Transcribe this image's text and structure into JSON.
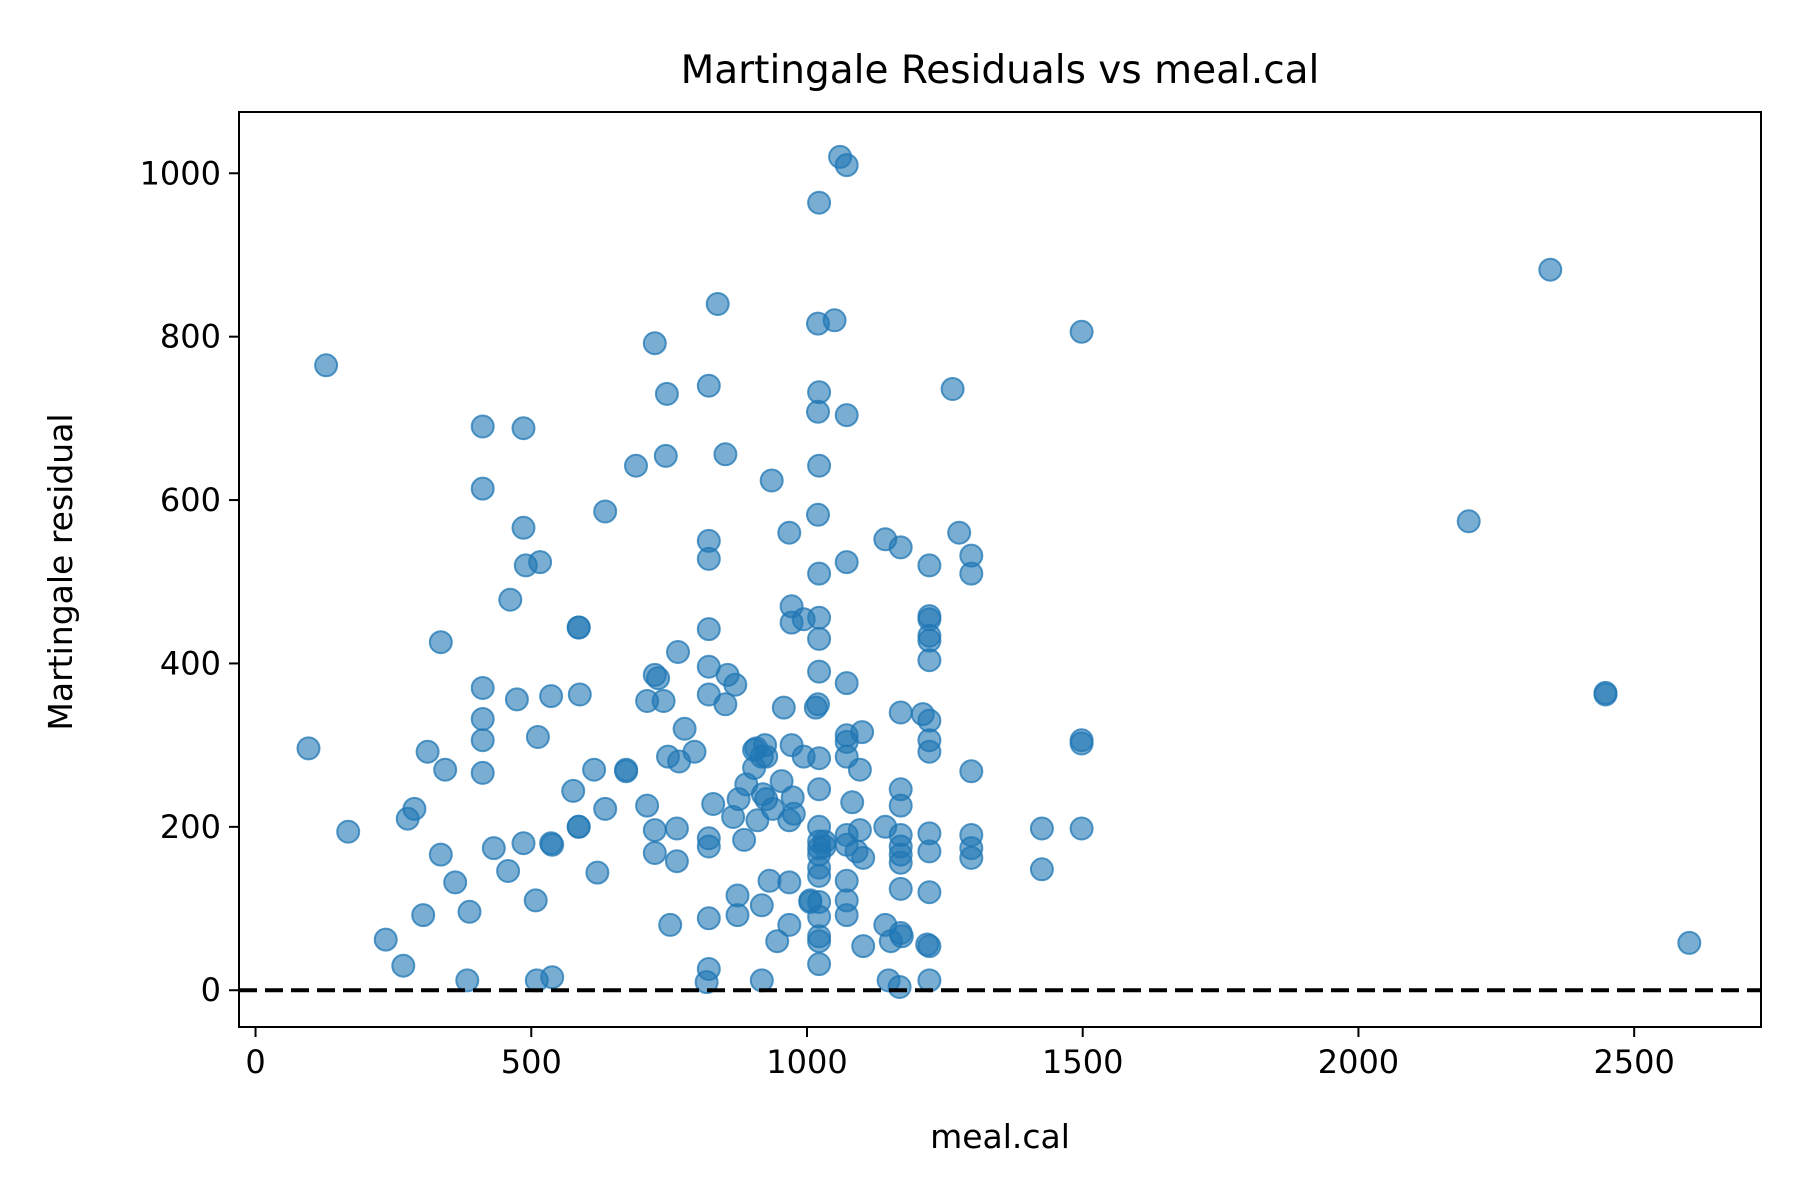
{
  "chart_data": {
    "type": "scatter",
    "title": "Martingale Residuals vs meal.cal",
    "xlabel": "meal.cal",
    "ylabel": "Martingale residual",
    "xlim": [
      -30,
      2730
    ],
    "ylim": [
      -45,
      1075
    ],
    "xticks": [
      0,
      500,
      1000,
      1500,
      2000,
      2500
    ],
    "yticks": [
      0,
      200,
      400,
      600,
      800,
      1000
    ],
    "grid": false,
    "reference_line": {
      "y": 0,
      "style": "dashed",
      "color": "#000000"
    },
    "marker_color": "#1f77b4",
    "marker_alpha": 0.6,
    "points": [
      [
        96,
        296
      ],
      [
        128,
        765
      ],
      [
        168,
        194
      ],
      [
        236,
        62
      ],
      [
        268,
        30
      ],
      [
        276,
        210
      ],
      [
        288,
        222
      ],
      [
        304,
        92
      ],
      [
        312,
        292
      ],
      [
        336,
        166
      ],
      [
        336,
        426
      ],
      [
        344,
        270
      ],
      [
        362,
        132
      ],
      [
        384,
        12
      ],
      [
        388,
        96
      ],
      [
        412,
        690
      ],
      [
        412,
        614
      ],
      [
        412,
        370
      ],
      [
        412,
        332
      ],
      [
        412,
        306
      ],
      [
        412,
        266
      ],
      [
        432,
        174
      ],
      [
        458,
        146
      ],
      [
        462,
        478
      ],
      [
        474,
        356
      ],
      [
        486,
        180
      ],
      [
        486,
        566
      ],
      [
        486,
        688
      ],
      [
        490,
        520
      ],
      [
        508,
        110
      ],
      [
        510,
        12
      ],
      [
        512,
        310
      ],
      [
        516,
        524
      ],
      [
        536,
        180
      ],
      [
        536,
        360
      ],
      [
        538,
        178
      ],
      [
        538,
        16
      ],
      [
        576,
        244
      ],
      [
        586,
        200
      ],
      [
        586,
        200
      ],
      [
        586,
        444
      ],
      [
        586,
        444
      ],
      [
        588,
        362
      ],
      [
        614,
        270
      ],
      [
        620,
        144
      ],
      [
        634,
        222
      ],
      [
        634,
        586
      ],
      [
        672,
        270
      ],
      [
        672,
        268
      ],
      [
        690,
        642
      ],
      [
        710,
        226
      ],
      [
        710,
        354
      ],
      [
        724,
        168
      ],
      [
        724,
        196
      ],
      [
        724,
        386
      ],
      [
        724,
        792
      ],
      [
        730,
        382
      ],
      [
        740,
        354
      ],
      [
        744,
        654
      ],
      [
        746,
        730
      ],
      [
        748,
        286
      ],
      [
        752,
        80
      ],
      [
        764,
        198
      ],
      [
        764,
        158
      ],
      [
        766,
        414
      ],
      [
        768,
        280
      ],
      [
        778,
        320
      ],
      [
        796,
        292
      ],
      [
        818,
        10
      ],
      [
        822,
        26
      ],
      [
        822,
        740
      ],
      [
        822,
        550
      ],
      [
        822,
        528
      ],
      [
        822,
        442
      ],
      [
        822,
        396
      ],
      [
        822,
        362
      ],
      [
        822,
        186
      ],
      [
        822,
        176
      ],
      [
        822,
        88
      ],
      [
        830,
        228
      ],
      [
        838,
        840
      ],
      [
        852,
        656
      ],
      [
        852,
        350
      ],
      [
        856,
        386
      ],
      [
        866,
        212
      ],
      [
        870,
        374
      ],
      [
        874,
        116
      ],
      [
        874,
        92
      ],
      [
        876,
        234
      ],
      [
        886,
        184
      ],
      [
        890,
        252
      ],
      [
        904,
        272
      ],
      [
        904,
        294
      ],
      [
        908,
        296
      ],
      [
        910,
        208
      ],
      [
        918,
        286
      ],
      [
        918,
        12
      ],
      [
        918,
        104
      ],
      [
        920,
        240
      ],
      [
        924,
        300
      ],
      [
        926,
        234
      ],
      [
        926,
        286
      ],
      [
        932,
        134
      ],
      [
        936,
        624
      ],
      [
        938,
        222
      ],
      [
        946,
        60
      ],
      [
        954,
        256
      ],
      [
        958,
        346
      ],
      [
        968,
        208
      ],
      [
        968,
        132
      ],
      [
        968,
        80
      ],
      [
        968,
        560
      ],
      [
        972,
        470
      ],
      [
        972,
        450
      ],
      [
        972,
        300
      ],
      [
        974,
        236
      ],
      [
        976,
        216
      ],
      [
        994,
        286
      ],
      [
        994,
        454
      ],
      [
        1006,
        108
      ],
      [
        1006,
        110
      ],
      [
        1016,
        346
      ],
      [
        1020,
        816
      ],
      [
        1020,
        708
      ],
      [
        1020,
        582
      ],
      [
        1020,
        350
      ],
      [
        1022,
        284
      ],
      [
        1022,
        964
      ],
      [
        1022,
        732
      ],
      [
        1022,
        642
      ],
      [
        1022,
        510
      ],
      [
        1022,
        456
      ],
      [
        1022,
        430
      ],
      [
        1022,
        390
      ],
      [
        1022,
        246
      ],
      [
        1022,
        200
      ],
      [
        1022,
        182
      ],
      [
        1022,
        174
      ],
      [
        1022,
        166
      ],
      [
        1022,
        150
      ],
      [
        1022,
        140
      ],
      [
        1022,
        108
      ],
      [
        1022,
        90
      ],
      [
        1022,
        66
      ],
      [
        1022,
        60
      ],
      [
        1022,
        32
      ],
      [
        1032,
        182
      ],
      [
        1032,
        176
      ],
      [
        1050,
        820
      ],
      [
        1060,
        1020
      ],
      [
        1072,
        1010
      ],
      [
        1072,
        704
      ],
      [
        1072,
        524
      ],
      [
        1072,
        376
      ],
      [
        1072,
        312
      ],
      [
        1072,
        304
      ],
      [
        1072,
        286
      ],
      [
        1072,
        190
      ],
      [
        1072,
        178
      ],
      [
        1072,
        134
      ],
      [
        1072,
        110
      ],
      [
        1072,
        92
      ],
      [
        1082,
        230
      ],
      [
        1090,
        170
      ],
      [
        1096,
        196
      ],
      [
        1096,
        270
      ],
      [
        1100,
        316
      ],
      [
        1102,
        54
      ],
      [
        1102,
        162
      ],
      [
        1142,
        552
      ],
      [
        1142,
        80
      ],
      [
        1142,
        200
      ],
      [
        1148,
        12
      ],
      [
        1152,
        60
      ],
      [
        1168,
        4
      ],
      [
        1170,
        542
      ],
      [
        1170,
        340
      ],
      [
        1170,
        246
      ],
      [
        1170,
        226
      ],
      [
        1170,
        190
      ],
      [
        1170,
        176
      ],
      [
        1170,
        166
      ],
      [
        1170,
        156
      ],
      [
        1170,
        124
      ],
      [
        1170,
        70
      ],
      [
        1172,
        66
      ],
      [
        1210,
        338
      ],
      [
        1218,
        56
      ],
      [
        1222,
        520
      ],
      [
        1222,
        458
      ],
      [
        1222,
        454
      ],
      [
        1222,
        434
      ],
      [
        1222,
        428
      ],
      [
        1222,
        404
      ],
      [
        1222,
        330
      ],
      [
        1222,
        306
      ],
      [
        1222,
        292
      ],
      [
        1222,
        192
      ],
      [
        1222,
        170
      ],
      [
        1222,
        120
      ],
      [
        1222,
        54
      ],
      [
        1222,
        12
      ],
      [
        1264,
        736
      ],
      [
        1276,
        560
      ],
      [
        1298,
        532
      ],
      [
        1298,
        510
      ],
      [
        1298,
        268
      ],
      [
        1298,
        190
      ],
      [
        1298,
        174
      ],
      [
        1298,
        162
      ],
      [
        1426,
        198
      ],
      [
        1426,
        148
      ],
      [
        1498,
        806
      ],
      [
        1498,
        306
      ],
      [
        1498,
        302
      ],
      [
        1498,
        198
      ],
      [
        2200,
        574
      ],
      [
        2348,
        882
      ],
      [
        2448,
        364
      ],
      [
        2448,
        362
      ],
      [
        2600,
        58
      ]
    ]
  }
}
